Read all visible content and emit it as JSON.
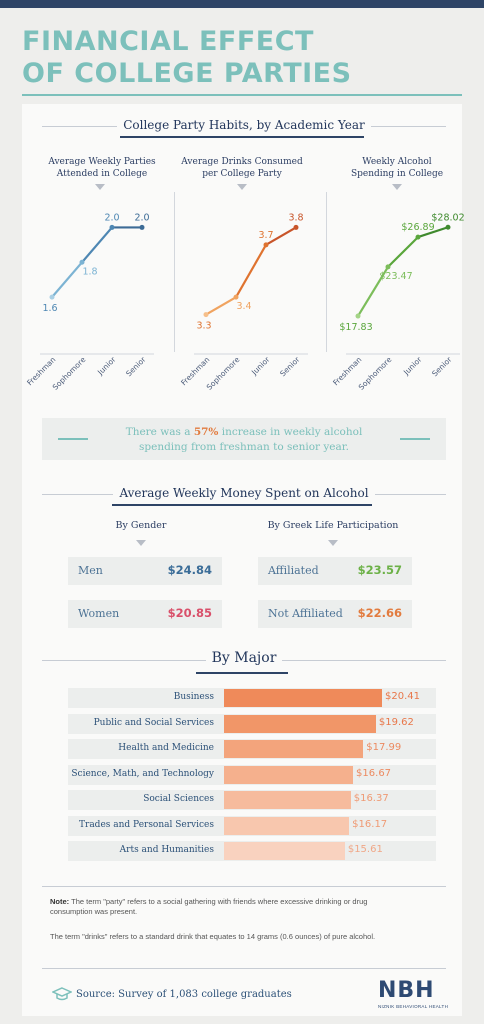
{
  "title_line1": "FINANCIAL EFFECT",
  "title_line2": "OF COLLEGE PARTIES",
  "section1_title": "College Party Habits, by Academic Year",
  "callout": {
    "pre": "There was a ",
    "highlight": "57%",
    "post": " increase in weekly alcohol spending from freshman to senior year."
  },
  "section2_title": "Average Weekly Money Spent on Alcohol",
  "gender": {
    "title": "By Gender",
    "items": [
      {
        "label": "Men",
        "value": "$24.84",
        "color": "#3b6d98"
      },
      {
        "label": "Women",
        "value": "$20.85",
        "color": "#d9506a"
      }
    ]
  },
  "greek": {
    "title": "By Greek Life Participation",
    "items": [
      {
        "label": "Affiliated",
        "value": "$23.57",
        "color": "#6cb147"
      },
      {
        "label": "Not Affiliated",
        "value": "$22.66",
        "color": "#e27b3e"
      }
    ]
  },
  "section3_title": "By Major",
  "chart_data": [
    {
      "type": "line",
      "title": "Average Weekly Parties Attended in College",
      "categories": [
        "Freshman",
        "Sophomore",
        "Junior",
        "Senior"
      ],
      "values": [
        1.6,
        1.8,
        2.0,
        2.0
      ],
      "labels": [
        "1.6",
        "1.8",
        "2.0",
        "2.0"
      ],
      "colors": [
        "#a9cfe4",
        "#7cb3d3",
        "#4e87b3",
        "#3c6b96"
      ],
      "ylim": [
        1.4,
        2.1
      ]
    },
    {
      "type": "line",
      "title": "Average Drinks Consumed per College Party",
      "categories": [
        "Freshman",
        "Sophomore",
        "Junior",
        "Senior"
      ],
      "values": [
        3.3,
        3.4,
        3.7,
        3.8
      ],
      "labels": [
        "3.3",
        "3.4",
        "3.7",
        "3.8"
      ],
      "colors": [
        "#f6bf8a",
        "#f0a360",
        "#df7330",
        "#c8552a"
      ],
      "ylim": [
        3.2,
        3.9
      ]
    },
    {
      "type": "line",
      "title": "Weekly Alcohol Spending in College",
      "categories": [
        "Freshman",
        "Sophomore",
        "Junior",
        "Senior"
      ],
      "values": [
        17.83,
        23.47,
        26.89,
        28.02
      ],
      "labels": [
        "$17.83",
        "$23.47",
        "$26.89",
        "$28.02"
      ],
      "colors": [
        "#a4d487",
        "#7cbd5b",
        "#5aa63c",
        "#3f8a2e"
      ],
      "ylim": [
        16,
        30
      ]
    },
    {
      "type": "bar",
      "title": "By Major",
      "categories": [
        "Business",
        "Public and Social Services",
        "Health and Medicine",
        "Science, Math, and Technology",
        "Social Sciences",
        "Trades and Personal Services",
        "Arts and Humanities"
      ],
      "values": [
        20.41,
        19.62,
        17.99,
        16.67,
        16.37,
        16.17,
        15.61
      ],
      "labels": [
        "$20.41",
        "$19.62",
        "$17.99",
        "$16.67",
        "$16.37",
        "$16.17",
        "$15.61"
      ],
      "colors": [
        "#ef8a5a",
        "#f19668",
        "#f3a47c",
        "#f5b08d",
        "#f6bb9d",
        "#f8c7ae",
        "#f9d2bf"
      ],
      "value_colors": [
        "#e8774a",
        "#e8774a",
        "#ec8a60",
        "#ec8a60",
        "#ef9a74",
        "#ef9a74",
        "#f0a787"
      ],
      "xlim": [
        0,
        20.41
      ]
    }
  ],
  "note_label": "Note:",
  "note_text": " The term \"party\" refers to a social gathering with friends where excessive drinking or drug consumption was present.",
  "note2": "The term \"drinks\" refers to a standard drink that equates to 14 grams (0.6 ounces) of pure alcohol.",
  "source": "Source: Survey of 1,083 college graduates",
  "logo_text": "NBH",
  "logo_sub": "NIZNIK BEHAVIORAL HEALTH"
}
